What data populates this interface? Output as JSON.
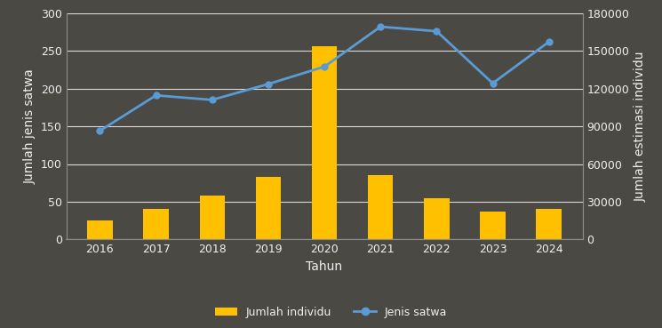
{
  "chart_data": {
    "type": "bar",
    "x_label": "Tahun",
    "y_label": "Jumlah jenis satwa",
    "y2_label": "Jumlah estimasi individu",
    "categories": [
      "2016",
      "2017",
      "2018",
      "2019",
      "2020",
      "2021",
      "2022",
      "2023",
      "2024"
    ],
    "series": [
      {
        "name": "Jumlah individu",
        "type": "bar",
        "axis": "y2",
        "color": "#ffc000",
        "values": [
          15000,
          24000,
          35000,
          50000,
          154000,
          51000,
          33000,
          22000,
          24000
        ]
      },
      {
        "name": "Jenis satwa",
        "type": "line",
        "color": "#5b9bd5",
        "marker": "circle",
        "values": [
          144,
          191,
          185,
          206,
          229,
          282,
          276,
          207,
          262
        ]
      }
    ],
    "ylim": [
      0,
      300
    ],
    "yticks": [
      0,
      50,
      100,
      150,
      200,
      250,
      300
    ],
    "y2lim": [
      0,
      180000
    ],
    "y2ticks": [
      0,
      30000,
      60000,
      90000,
      120000,
      150000,
      180000
    ],
    "grid": true,
    "legend": "bottom"
  }
}
